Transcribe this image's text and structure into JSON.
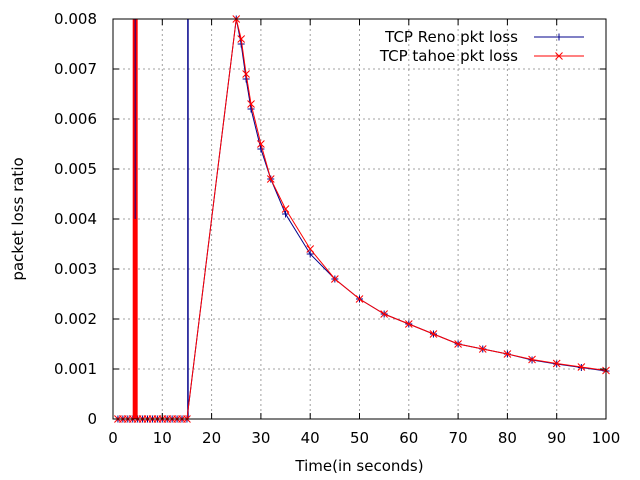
{
  "chart_data": {
    "type": "line",
    "xlabel": "Time(in seconds)",
    "ylabel": "packet loss ratio",
    "xlim": [
      0,
      100
    ],
    "ylim": [
      0,
      0.008
    ],
    "xticks": [
      "0",
      "10",
      "20",
      "30",
      "40",
      "50",
      "60",
      "70",
      "80",
      "90",
      "100"
    ],
    "yticks": [
      "0",
      "0.001",
      "0.002",
      "0.003",
      "0.004",
      "0.005",
      "0.006",
      "0.007",
      "0.008"
    ],
    "grid": true,
    "legend_position": "top-right",
    "series": [
      {
        "name": "TCP Reno pkt loss",
        "color": "#00008b",
        "marker": "plus",
        "spikes": [
          {
            "x": 4.5,
            "y": 0.008
          },
          {
            "x": 15.2,
            "y": 0.008
          }
        ],
        "x": [
          1,
          2,
          3,
          4,
          5,
          6,
          7,
          8,
          9,
          10,
          11,
          12,
          13,
          14,
          15,
          25,
          26,
          27,
          28,
          30,
          32,
          35,
          40,
          45,
          50,
          55,
          60,
          65,
          70,
          75,
          80,
          85,
          90,
          95,
          100
        ],
        "y": [
          0,
          0,
          0,
          0,
          0,
          0,
          0,
          0,
          0,
          0,
          0,
          0,
          0,
          0,
          0,
          0.008,
          0.0075,
          0.0068,
          0.0062,
          0.0054,
          0.0048,
          0.0041,
          0.0033,
          0.0028,
          0.0024,
          0.0021,
          0.0019,
          0.0017,
          0.0015,
          0.0014,
          0.0013,
          0.00118,
          0.0011,
          0.00103,
          0.00096
        ]
      },
      {
        "name": "TCP tahoe pkt loss",
        "color": "#ff0000",
        "marker": "cross",
        "spikes": [
          {
            "x": 4.2,
            "y": 0.008
          },
          {
            "x": 4.5,
            "y": 0.004
          },
          {
            "x": 4.8,
            "y": 0.008
          }
        ],
        "x": [
          1,
          2,
          3,
          4,
          5,
          6,
          7,
          8,
          9,
          10,
          11,
          12,
          13,
          14,
          15,
          25,
          26,
          27,
          28,
          30,
          32,
          35,
          40,
          45,
          50,
          55,
          60,
          65,
          70,
          75,
          80,
          85,
          90,
          95,
          100
        ],
        "y": [
          0,
          0,
          0,
          0,
          0,
          0,
          0,
          0,
          0,
          0,
          0,
          0,
          0,
          0,
          0,
          0.008,
          0.0076,
          0.0069,
          0.0063,
          0.0055,
          0.0048,
          0.0042,
          0.0034,
          0.0028,
          0.0024,
          0.0021,
          0.0019,
          0.0017,
          0.0015,
          0.0014,
          0.0013,
          0.00119,
          0.00111,
          0.00104,
          0.00097
        ]
      }
    ]
  }
}
